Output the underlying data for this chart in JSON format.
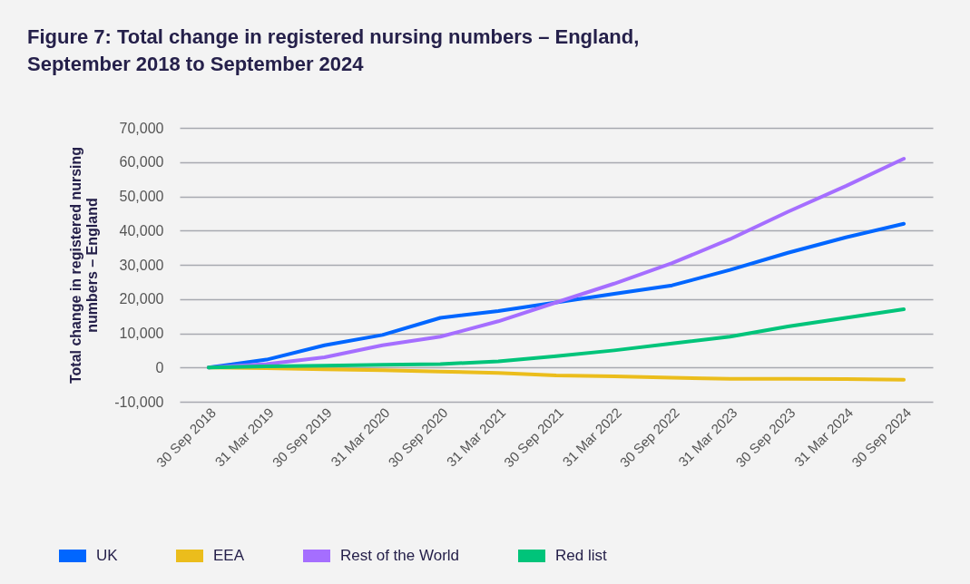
{
  "chart_data": {
    "type": "line",
    "title": [
      "Figure 7: Total change in registered nursing numbers – England,",
      "September 2018 to September 2024"
    ],
    "ylabel": [
      "Total change in registered nursing",
      "numbers – England"
    ],
    "categories": [
      "30 Sep 2018",
      "31 Mar 2019",
      "30 Sep 2019",
      "31 Mar 2020",
      "30 Sep 2020",
      "31 Mar 2021",
      "30 Sep 2021",
      "31 Mar 2022",
      "30 Sep 2022",
      "31 Mar 2023",
      "30 Sep 2023",
      "31 Mar 2024",
      "30 Sep 2024"
    ],
    "series": [
      {
        "name": "UK",
        "color": "#0066ff",
        "values": [
          0,
          2300,
          6500,
          9500,
          14500,
          16500,
          19000,
          21500,
          24000,
          28500,
          33500,
          38000,
          42000
        ]
      },
      {
        "name": "EEA",
        "color": "#ebbd1c",
        "values": [
          0,
          -200,
          -500,
          -800,
          -1200,
          -1600,
          -2300,
          -2600,
          -3000,
          -3300,
          -3300,
          -3400,
          -3600
        ]
      },
      {
        "name": "Rest of the World",
        "color": "#a56eff",
        "values": [
          0,
          1000,
          3000,
          6500,
          9000,
          13500,
          19000,
          24500,
          30500,
          37500,
          45500,
          53000,
          61000
        ]
      },
      {
        "name": "Red list",
        "color": "#00c47a",
        "values": [
          0,
          300,
          500,
          800,
          1000,
          1800,
          3300,
          5000,
          7000,
          9000,
          12000,
          14500,
          17000
        ]
      }
    ],
    "ylim": [
      -10000,
      70000
    ],
    "yticks": [
      {
        "value": -10000,
        "label": "-10,000"
      },
      {
        "value": 0,
        "label": "0"
      },
      {
        "value": 10000,
        "label": "10,000"
      },
      {
        "value": 20000,
        "label": "20,000"
      },
      {
        "value": 30000,
        "label": "30,000"
      },
      {
        "value": 40000,
        "label": "40,000"
      },
      {
        "value": 50000,
        "label": "50,000"
      },
      {
        "value": 60000,
        "label": "60,000"
      },
      {
        "value": 70000,
        "label": "70,000"
      }
    ],
    "grid": "y",
    "legend": "bottom",
    "marker": "none",
    "line_style": "solid"
  }
}
